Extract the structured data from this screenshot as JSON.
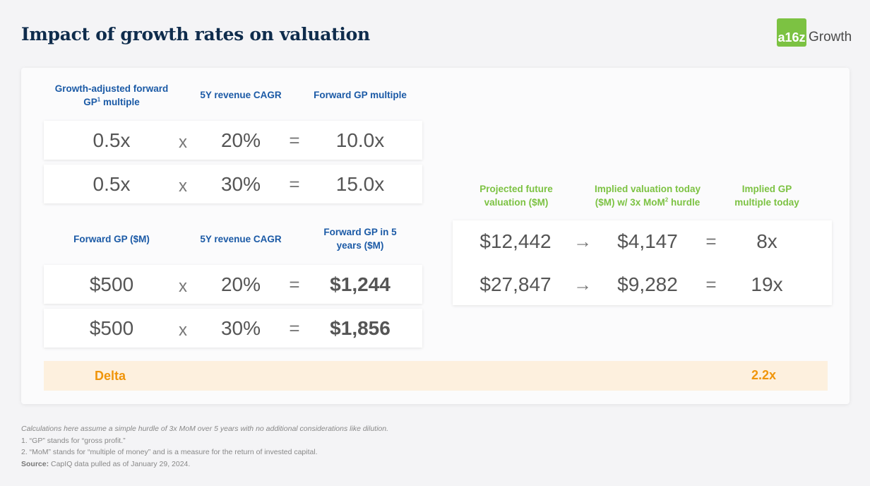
{
  "title": "Impact of growth rates on valuation",
  "logo": {
    "mark": "a16z",
    "text": "Growth"
  },
  "table1": {
    "headers": [
      "Growth-adjusted forward",
      "GP",
      "1",
      " multiple",
      "5Y revenue CAGR",
      "Forward GP multiple"
    ],
    "rows": [
      {
        "a": "0.5x",
        "op1": "x",
        "b": "20%",
        "op2": "=",
        "c": "10.0x"
      },
      {
        "a": "0.5x",
        "op1": "x",
        "b": "30%",
        "op2": "=",
        "c": "15.0x"
      }
    ]
  },
  "table2": {
    "headers": [
      "Forward GP ($M)",
      "5Y revenue CAGR",
      "Forward GP in 5",
      "years ($M)"
    ],
    "rows": [
      {
        "a": "$500",
        "op1": "x",
        "b": "20%",
        "op2": "=",
        "c": "$1,244"
      },
      {
        "a": "$500",
        "op1": "x",
        "b": "30%",
        "op2": "=",
        "c": "$1,856"
      }
    ]
  },
  "table3": {
    "headers": [
      "Projected future",
      "valuation ($M)",
      "Implied valuation today",
      "($M) w/ 3x MoM",
      "2",
      " hurdle",
      "Implied GP",
      "multiple today"
    ],
    "rows": [
      {
        "a": "$12,442",
        "arrow": "→",
        "b": "$4,147",
        "eq": "=",
        "c": "8x"
      },
      {
        "a": "$27,847",
        "arrow": "→",
        "b": "$9,282",
        "eq": "=",
        "c": "19x"
      }
    ]
  },
  "delta": {
    "label": "Delta",
    "value": "2.2x"
  },
  "footnotes": {
    "assumption": "Calculations here assume a simple hurdle of 3x MoM over 5 years with no additional considerations like dilution.",
    "note1": "1. “GP” stands for “gross profit.”",
    "note2": "2. “MoM” stands for “multiple of money” and is a measure for the return of invested capital.",
    "source_label": "Source:",
    "source_text": " CapIQ data pulled as of January 29, 2024."
  },
  "colors": {
    "navy": "#0f2c4c",
    "blue": "#1b5aa6",
    "green": "#7cc242",
    "orange": "#f0950a"
  }
}
